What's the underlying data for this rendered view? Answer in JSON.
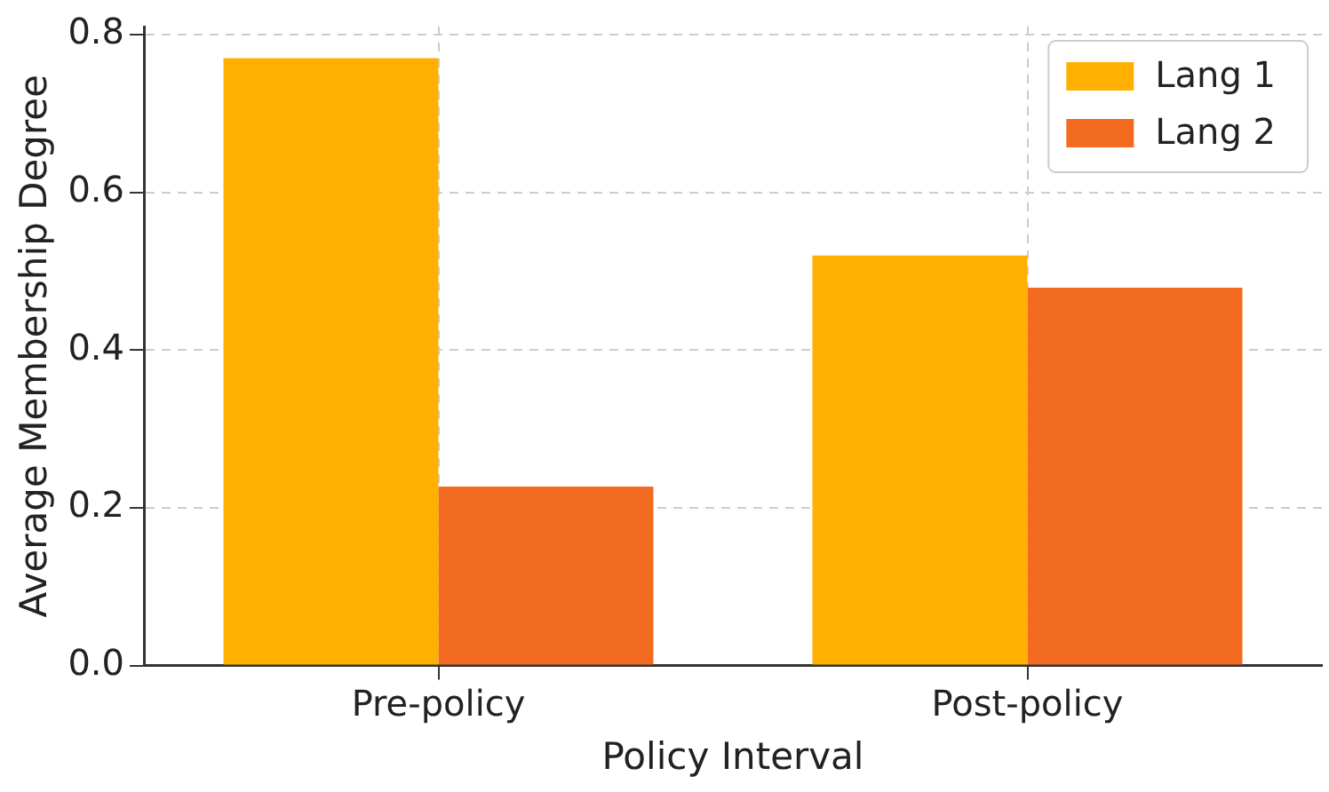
{
  "chart_data": {
    "type": "bar",
    "xlabel": "Policy Interval",
    "ylabel": "Average Membership Degree",
    "categories": [
      "Pre-policy",
      "Post-policy"
    ],
    "series": [
      {
        "name": "Lang 1",
        "color": "#ffb000",
        "values": [
          0.77,
          0.52
        ]
      },
      {
        "name": "Lang 2",
        "color": "#f26b21",
        "values": [
          0.227,
          0.479
        ]
      }
    ],
    "ylim": [
      0,
      0.81
    ],
    "yticks": [
      {
        "value": 0,
        "label": "0.0"
      },
      {
        "value": 0.2,
        "label": "0.2"
      },
      {
        "value": 0.4,
        "label": "0.4"
      },
      {
        "value": 0.6,
        "label": "0.6"
      },
      {
        "value": 0.8,
        "label": "0.8"
      }
    ],
    "grid": true,
    "legend": "top right"
  }
}
